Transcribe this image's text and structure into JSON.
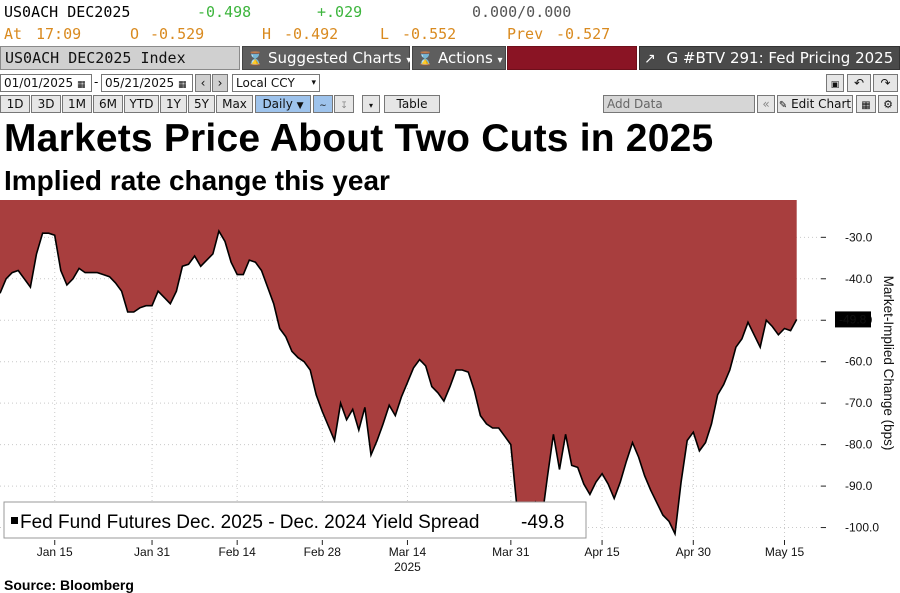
{
  "quote": {
    "ticker": "US0ACH DEC2025",
    "last": "-0.498",
    "change": "+.029",
    "bidask": "0.000/0.000",
    "at_label": "At",
    "time": "17:09",
    "open_label": "O",
    "open": "-0.529",
    "high_label": "H",
    "high": "-0.492",
    "low_label": "L",
    "low": "-0.552",
    "prev_label": "Prev",
    "prev": "-0.527"
  },
  "toolbar": {
    "security": "US0ACH DEC2025 Index",
    "suggested": "Suggested Charts",
    "actions": "Actions",
    "chart_title": "G #BTV 291: Fed Pricing 2025"
  },
  "controls": {
    "start_date": "01/01/2025",
    "end_date": "05/21/2025",
    "currency": "Local CCY",
    "periods": [
      "1D",
      "3D",
      "1M",
      "6M",
      "YTD",
      "1Y",
      "5Y",
      "Max"
    ],
    "frequency": "Daily",
    "table": "Table",
    "add_data_placeholder": "Add Data",
    "edit_chart": "Edit Chart"
  },
  "heading": {
    "title": "Markets Price About Two Cuts in 2025",
    "subtitle": "Implied rate change this year"
  },
  "source": "Source: Bloomberg",
  "colors": {
    "area_fill": "#a83e3e",
    "line": "#000000",
    "last_price_label_bg": "#000000"
  },
  "chart_data": {
    "type": "area",
    "ylabel": "Market-Implied Change (bps)",
    "ylim": [
      -103,
      -21
    ],
    "yticks": [
      -30,
      -40,
      -50,
      -60,
      -70,
      -80,
      -90,
      -100
    ],
    "ytick_labels": [
      "-30.0",
      "-40.0",
      "-50.0",
      "-60.0",
      "-70.0",
      "-80.0",
      "-90.0",
      "-100.0"
    ],
    "xlim": [
      "2025-01-06",
      "2025-05-21"
    ],
    "xticks": [
      "2025-01-15",
      "2025-01-31",
      "2025-02-14",
      "2025-02-28",
      "2025-03-14",
      "2025-03-31",
      "2025-04-15",
      "2025-04-30",
      "2025-05-15"
    ],
    "xtick_labels": [
      "Jan 15",
      "Jan 31",
      "Feb 14",
      "Feb 28",
      "Mar 14",
      "Mar 31",
      "Apr 15",
      "Apr 30",
      "May 15"
    ],
    "year_label": "2025",
    "last_value_label": "-49.8",
    "legend": {
      "text": "Fed Fund Futures Dec. 2025 - Dec. 2024 Yield Spread",
      "value": "-49.8",
      "position": "bottom-left"
    },
    "series": [
      {
        "name": "Fed Fund Futures Dec. 2025 - Dec. 2024 Yield Spread",
        "points": [
          [
            "2025-01-06",
            -43.5
          ],
          [
            "2025-01-07",
            -40
          ],
          [
            "2025-01-08",
            -38.5
          ],
          [
            "2025-01-09",
            -38
          ],
          [
            "2025-01-10",
            -40
          ],
          [
            "2025-01-11",
            -42
          ],
          [
            "2025-01-12",
            -34
          ],
          [
            "2025-01-13",
            -29
          ],
          [
            "2025-01-14",
            -29
          ],
          [
            "2025-01-15",
            -29.5
          ],
          [
            "2025-01-16",
            -38
          ],
          [
            "2025-01-17",
            -41.5
          ],
          [
            "2025-01-18",
            -40
          ],
          [
            "2025-01-19",
            -37.5
          ],
          [
            "2025-01-20",
            -38.5
          ],
          [
            "2025-01-21",
            -38.5
          ],
          [
            "2025-01-22",
            -38.5
          ],
          [
            "2025-01-23",
            -39
          ],
          [
            "2025-01-24",
            -39.5
          ],
          [
            "2025-01-25",
            -41
          ],
          [
            "2025-01-26",
            -43
          ],
          [
            "2025-01-27",
            -48
          ],
          [
            "2025-01-28",
            -48
          ],
          [
            "2025-01-29",
            -47
          ],
          [
            "2025-01-30",
            -46.5
          ],
          [
            "2025-01-31",
            -46.5
          ],
          [
            "2025-02-01",
            -43
          ],
          [
            "2025-02-02",
            -44.5
          ],
          [
            "2025-02-03",
            -46
          ],
          [
            "2025-02-04",
            -43
          ],
          [
            "2025-02-05",
            -37
          ],
          [
            "2025-02-06",
            -36.5
          ],
          [
            "2025-02-07",
            -34.5
          ],
          [
            "2025-02-08",
            -37
          ],
          [
            "2025-02-09",
            -35.5
          ],
          [
            "2025-02-10",
            -34
          ],
          [
            "2025-02-11",
            -28.5
          ],
          [
            "2025-02-12",
            -31
          ],
          [
            "2025-02-13",
            -36
          ],
          [
            "2025-02-14",
            -39
          ],
          [
            "2025-02-15",
            -39
          ],
          [
            "2025-02-16",
            -35.5
          ],
          [
            "2025-02-17",
            -36
          ],
          [
            "2025-02-18",
            -38
          ],
          [
            "2025-02-19",
            -42
          ],
          [
            "2025-02-20",
            -46
          ],
          [
            "2025-02-21",
            -52
          ],
          [
            "2025-02-22",
            -54
          ],
          [
            "2025-02-23",
            -57.5
          ],
          [
            "2025-02-24",
            -59
          ],
          [
            "2025-02-25",
            -60
          ],
          [
            "2025-02-26",
            -62
          ],
          [
            "2025-02-27",
            -68
          ],
          [
            "2025-02-28",
            -72
          ],
          [
            "2025-03-01",
            -75.5
          ],
          [
            "2025-03-02",
            -79
          ],
          [
            "2025-03-03",
            -70
          ],
          [
            "2025-03-04",
            -74
          ],
          [
            "2025-03-05",
            -71.5
          ],
          [
            "2025-03-06",
            -76.5
          ],
          [
            "2025-03-07",
            -71
          ],
          [
            "2025-03-08",
            -82.5
          ],
          [
            "2025-03-09",
            -79
          ],
          [
            "2025-03-10",
            -75
          ],
          [
            "2025-03-11",
            -70.5
          ],
          [
            "2025-03-12",
            -73
          ],
          [
            "2025-03-13",
            -68.5
          ],
          [
            "2025-03-14",
            -65
          ],
          [
            "2025-03-15",
            -61.5
          ],
          [
            "2025-03-16",
            -59.5
          ],
          [
            "2025-03-17",
            -61
          ],
          [
            "2025-03-18",
            -66
          ],
          [
            "2025-03-19",
            -67.5
          ],
          [
            "2025-03-20",
            -69.5
          ],
          [
            "2025-03-21",
            -66
          ],
          [
            "2025-03-22",
            -62
          ],
          [
            "2025-03-23",
            -62
          ],
          [
            "2025-03-24",
            -62.5
          ],
          [
            "2025-03-25",
            -67
          ],
          [
            "2025-03-26",
            -73
          ],
          [
            "2025-03-27",
            -75
          ],
          [
            "2025-03-28",
            -76
          ],
          [
            "2025-03-29",
            -76
          ],
          [
            "2025-03-30",
            -78
          ],
          [
            "2025-03-31",
            -80
          ],
          [
            "2025-04-01",
            -95
          ],
          [
            "2025-04-02",
            -99
          ],
          [
            "2025-04-03",
            -97.5
          ],
          [
            "2025-04-04",
            -94
          ],
          [
            "2025-04-05",
            -99
          ],
          [
            "2025-04-06",
            -88
          ],
          [
            "2025-04-07",
            -77.5
          ],
          [
            "2025-04-08",
            -86
          ],
          [
            "2025-04-09",
            -77.5
          ],
          [
            "2025-04-10",
            -85
          ],
          [
            "2025-04-11",
            -85.5
          ],
          [
            "2025-04-12",
            -89.5
          ],
          [
            "2025-04-13",
            -92
          ],
          [
            "2025-04-14",
            -89
          ],
          [
            "2025-04-15",
            -87
          ],
          [
            "2025-04-16",
            -89.5
          ],
          [
            "2025-04-17",
            -93
          ],
          [
            "2025-04-18",
            -89
          ],
          [
            "2025-04-19",
            -84
          ],
          [
            "2025-04-20",
            -79.5
          ],
          [
            "2025-04-21",
            -83
          ],
          [
            "2025-04-22",
            -87.5
          ],
          [
            "2025-04-23",
            -91
          ],
          [
            "2025-04-24",
            -94
          ],
          [
            "2025-04-25",
            -97
          ],
          [
            "2025-04-26",
            -98.5
          ],
          [
            "2025-04-27",
            -101.5
          ],
          [
            "2025-04-28",
            -89
          ],
          [
            "2025-04-29",
            -79
          ],
          [
            "2025-04-30",
            -77
          ],
          [
            "2025-05-01",
            -81.5
          ],
          [
            "2025-05-02",
            -79.5
          ],
          [
            "2025-05-03",
            -75
          ],
          [
            "2025-05-04",
            -68
          ],
          [
            "2025-05-05",
            -65.5
          ],
          [
            "2025-05-06",
            -62
          ],
          [
            "2025-05-07",
            -56.5
          ],
          [
            "2025-05-08",
            -54.5
          ],
          [
            "2025-05-09",
            -50.5
          ],
          [
            "2025-05-10",
            -53.5
          ],
          [
            "2025-05-11",
            -56.5
          ],
          [
            "2025-05-12",
            -50
          ],
          [
            "2025-05-13",
            -51.5
          ],
          [
            "2025-05-14",
            -53.5
          ],
          [
            "2025-05-15",
            -52
          ],
          [
            "2025-05-16",
            -52.5
          ],
          [
            "2025-05-17",
            -49.8
          ]
        ]
      }
    ]
  }
}
